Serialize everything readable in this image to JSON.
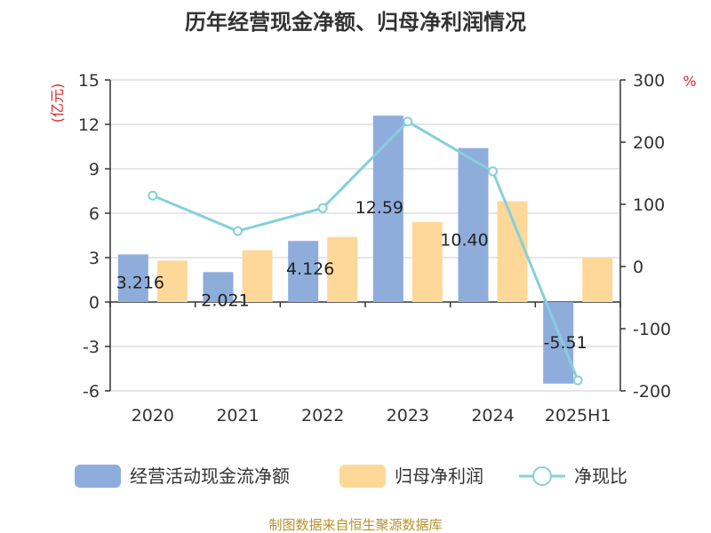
{
  "title": "历年经营现金净额、归母净利润情况",
  "source": "制图数据来自恒生聚源数据库",
  "chart_data": {
    "type": "bar",
    "categories": [
      "2020",
      "2021",
      "2022",
      "2023",
      "2024",
      "2025H1"
    ],
    "y_left": {
      "unit": "(亿元)",
      "ylim": [
        -6,
        15
      ],
      "ticks": [
        -6,
        -3,
        0,
        3,
        6,
        9,
        12,
        15
      ]
    },
    "y_right": {
      "unit": "%",
      "ylim": [
        -200,
        300
      ],
      "ticks": [
        -200,
        -100,
        0,
        100,
        200,
        300
      ]
    },
    "series": [
      {
        "name": "经营活动现金流净额",
        "kind": "bar",
        "axis": "left",
        "color": "#8faddb",
        "values": [
          3.216,
          2.021,
          4.126,
          12.59,
          10.4,
          -5.51
        ],
        "labels": [
          "3.216",
          "2.021",
          "4.126",
          "12.59",
          "10.40",
          "-5.51"
        ]
      },
      {
        "name": "归母净利润",
        "kind": "bar",
        "axis": "left",
        "color": "#fed899",
        "values": [
          2.8,
          3.5,
          4.4,
          5.4,
          6.8,
          3.0
        ]
      },
      {
        "name": "净现比",
        "kind": "line",
        "axis": "right",
        "color": "#85d0dc",
        "values": [
          114,
          57,
          94,
          233,
          153,
          -183
        ]
      }
    ],
    "grid": true,
    "legend_position": "bottom"
  }
}
